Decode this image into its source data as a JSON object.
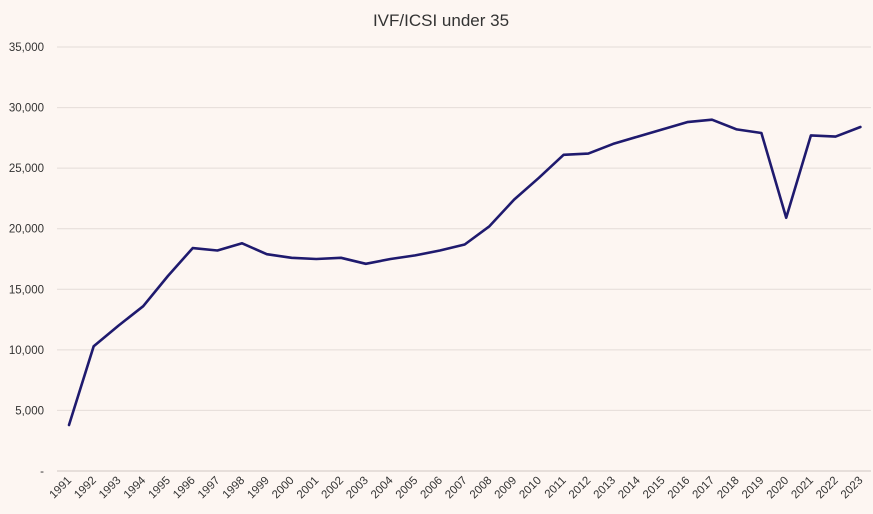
{
  "chart_data": {
    "type": "line",
    "title": "IVF/ICSI under 35",
    "xlabel": "",
    "ylabel": "",
    "ylim": [
      0,
      35000
    ],
    "yticks": [
      0,
      5000,
      10000,
      15000,
      20000,
      25000,
      30000,
      35000
    ],
    "ytick_labels": [
      "-",
      "5,000",
      "10,000",
      "15,000",
      "20,000",
      "25,000",
      "30,000",
      "35,000"
    ],
    "grid": "horizontal",
    "legend": "none",
    "x": [
      "1991",
      "1992",
      "1993",
      "1994",
      "1995",
      "1996",
      "1997",
      "1998",
      "1999",
      "2000",
      "2001",
      "2002",
      "2003",
      "2004",
      "2005",
      "2006",
      "2007",
      "2008",
      "2009",
      "2010",
      "2011",
      "2012",
      "2013",
      "2014",
      "2015",
      "2016",
      "2017",
      "2018",
      "2019",
      "2020",
      "2021",
      "2022",
      "2023"
    ],
    "series": [
      {
        "color": "#1f1a6e",
        "values": [
          3800,
          10300,
          12000,
          13600,
          16100,
          18400,
          18200,
          18800,
          17900,
          17600,
          17500,
          17600,
          17100,
          17500,
          17800,
          18200,
          18700,
          20200,
          22400,
          24200,
          26100,
          26200,
          27000,
          27600,
          28200,
          28800,
          29000,
          28200,
          27900,
          20900,
          27700,
          27600,
          28400
        ]
      }
    ]
  }
}
